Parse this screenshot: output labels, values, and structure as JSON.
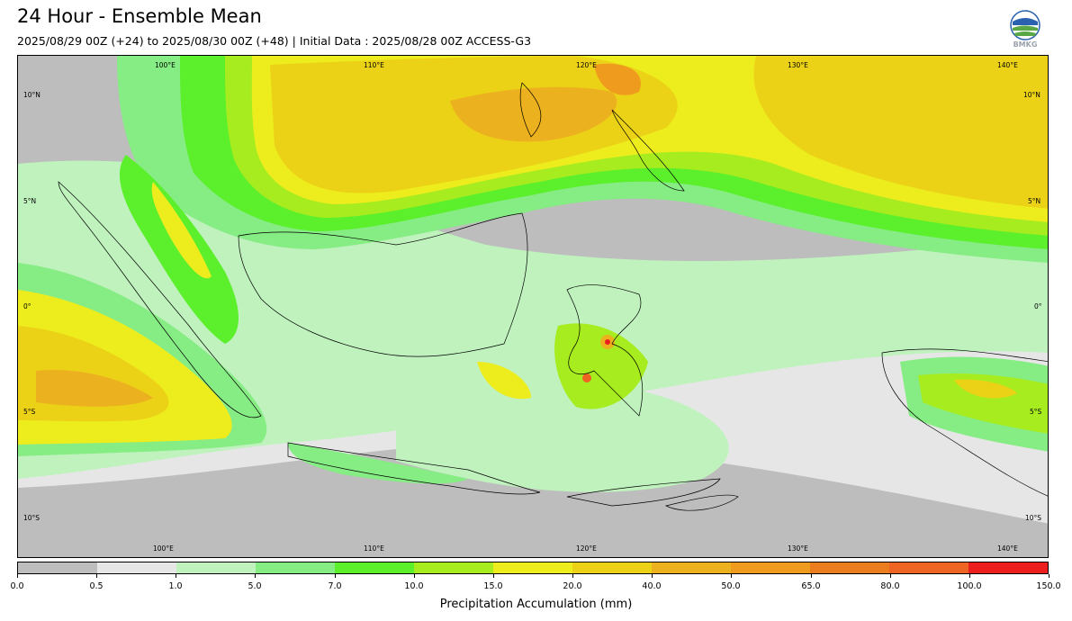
{
  "header": {
    "title": "24 Hour - Ensemble Mean",
    "subtitle": "2025/08/29 00Z (+24) to 2025/08/30 00Z (+48) | Initial Data : 2025/08/28 00Z ACCESS-G3",
    "logo_text": "BMKG"
  },
  "map": {
    "longitude_labels": [
      "100°E",
      "110°E",
      "120°E",
      "130°E",
      "140°E"
    ],
    "latitude_labels": [
      "10°N",
      "5°N",
      "0°",
      "5°S",
      "10°S"
    ]
  },
  "colorbar": {
    "label": "Precipitation Accumulation (mm)",
    "ticks": [
      "0.0",
      "0.5",
      "1.0",
      "5.0",
      "7.0",
      "10.0",
      "15.0",
      "20.0",
      "40.0",
      "50.0",
      "65.0",
      "80.0",
      "100.0",
      "150.0"
    ],
    "colors": [
      "#bdbdbd",
      "#e6e6e6",
      "#bff2bd",
      "#86ec84",
      "#5cef2c",
      "#a6ec1e",
      "#eded1e",
      "#ecd217",
      "#ecb11e",
      "#ee9b1e",
      "#ec7d1e",
      "#ee6423",
      "#ec1e1e",
      "#e61ebe"
    ]
  }
}
